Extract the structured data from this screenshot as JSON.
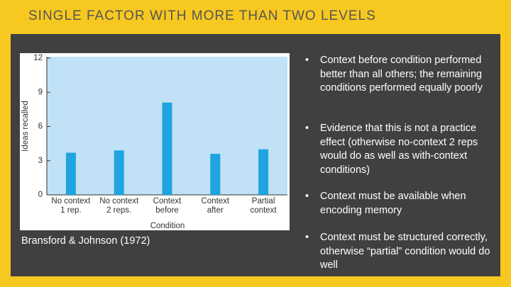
{
  "slide": {
    "title": "SINGLE FACTOR WITH MORE THAN TWO LEVELS",
    "citation": "Bransford & Johnson (1972)",
    "bullets": [
      "Context before condition performed better than all others; the remaining conditions performed equally poorly",
      "Evidence that this is not a practice effect (otherwise no-context 2 reps would do as well as with-context conditions)",
      "Context must be available when encoding memory",
      "Context must be structured correctly, otherwise “partial” condition would do well"
    ]
  },
  "chart_data": {
    "type": "bar",
    "categories": [
      "No context\n1 rep.",
      "No context\n2 reps.",
      "Context\nbefore",
      "Context\nafter",
      "Partial\ncontext"
    ],
    "values": [
      3.7,
      3.9,
      8.1,
      3.6,
      4.0
    ],
    "color": "#1ea4e0",
    "x_label": "Condition",
    "y_label": "Ideas recalled",
    "ylim": [
      0,
      12
    ],
    "yticks": [
      0,
      3,
      6,
      9,
      12
    ],
    "grid": false
  }
}
